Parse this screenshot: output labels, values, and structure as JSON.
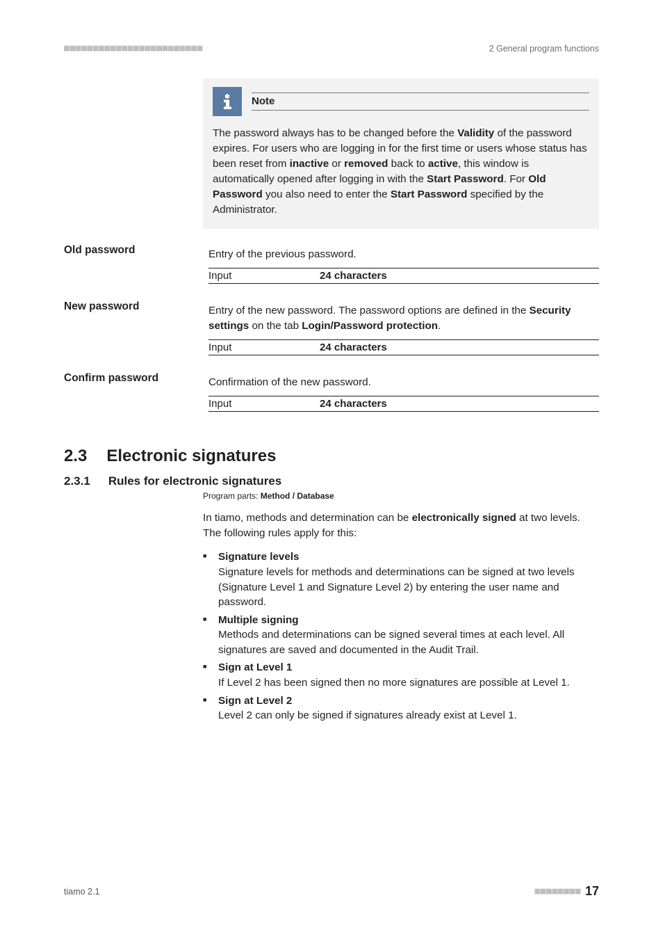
{
  "header": {
    "left_dots": "■■■■■■■■■■■■■■■■■■■■■■■■",
    "right": "2 General program functions"
  },
  "note": {
    "title": "Note",
    "body_html": "The password always has to be changed before the <b>Validity</b> of the password expires. For users who are logging in for the first time or users whose status has been reset from <b>inactive</b> or <b>removed</b> back to <b>active</b>, this window is automatically opened after logging in with the <b>Start Password</b>. For <b>Old Password</b> you also need to enter the <b>Start Password</b> specified by the Administrator."
  },
  "fields": [
    {
      "label": "Old password",
      "desc_html": "Entry of the previous password.",
      "input_label": "Input",
      "input_value": "24 characters"
    },
    {
      "label": "New password",
      "desc_html": "Entry of the new password. The password options are defined in the <b>Security settings</b> on the tab <b>Login/Password protection</b>.",
      "input_label": "Input",
      "input_value": "24 characters"
    },
    {
      "label": "Confirm password",
      "desc_html": "Confirmation of the new password.",
      "input_label": "Input",
      "input_value": "24 characters"
    }
  ],
  "section": {
    "num": "2.3",
    "title": "Electronic signatures"
  },
  "subsection": {
    "num": "2.3.1",
    "title": "Rules for electronic signatures"
  },
  "program_parts": {
    "label": "Program parts: ",
    "value": "Method / Database"
  },
  "intro_html": "In tiamo, methods and determination can be <b>electronically signed</b> at two levels. The following rules apply for this:",
  "rules": [
    {
      "title": "Signature levels",
      "body": "Signature levels for methods and determinations can be signed at two levels (Signature Level 1 and Signature Level 2) by entering the user name and password."
    },
    {
      "title": "Multiple signing",
      "body": "Methods and determinations can be signed several times at each level. All signatures are saved and documented in the Audit Trail."
    },
    {
      "title": "Sign at Level 1",
      "body": "If Level 2 has been signed then no more signatures are possible at Level 1."
    },
    {
      "title": "Sign at Level 2",
      "body": "Level 2 can only be signed if signatures already exist at Level 1."
    }
  ],
  "footer": {
    "left": "tiamo 2.1",
    "dots": "■■■■■■■■",
    "page": "17"
  }
}
